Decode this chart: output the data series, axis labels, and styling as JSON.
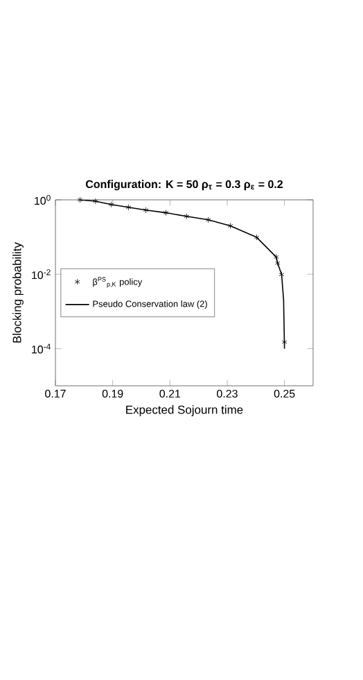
{
  "chart_data": {
    "type": "line",
    "title": "Configuration:  K = 50     ρ$_{τ}$ = 0.3   ρ$_{ε}$ = 0.2",
    "xlabel": "Expected Sojourn time",
    "ylabel": "Blocking probability",
    "log": "y",
    "legend": "left",
    "grid": false,
    "xlim": [
      0.17,
      0.26
    ],
    "xticks": [
      0.17,
      0.19,
      0.21,
      0.23,
      0.25
    ],
    "ylim": [
      1e-05,
      1
    ],
    "yticks": [
      {
        "value": 0.0001,
        "label": "10$^{-4}$"
      },
      {
        "value": 0.01,
        "label": "10$^{-2}$"
      },
      {
        "value": 1,
        "label": "10$^{0}$"
      }
    ],
    "series": [
      {
        "type": "scatter",
        "marker": "cross",
        "name": "β$^{PS}$$_{p,K}$ policy",
        "color": "#000000",
        "x": [
          0.1786,
          0.184,
          0.1895,
          0.1955,
          0.2016,
          0.2086,
          0.2158,
          0.2234,
          0.2311,
          0.2403,
          0.2471,
          0.2476,
          0.249,
          0.25
        ],
        "values": [
          1.0,
          0.92,
          0.75,
          0.63,
          0.53,
          0.45,
          0.36,
          0.29,
          0.2,
          0.098,
          0.029,
          0.02,
          0.0098,
          0.00015
        ]
      },
      {
        "line_style": "solid",
        "name": "Pseudo Conservation law (2)",
        "color": "#000000",
        "x": [
          0.1786,
          0.184,
          0.1895,
          0.1955,
          0.2016,
          0.2086,
          0.2158,
          0.2234,
          0.2311,
          0.2403,
          0.2471,
          0.2476,
          0.249,
          0.2497,
          0.25
        ],
        "values": [
          1.0,
          0.92,
          0.75,
          0.63,
          0.53,
          0.45,
          0.36,
          0.29,
          0.2,
          0.098,
          0.029,
          0.02,
          0.0098,
          0.002,
          0.0001
        ]
      }
    ]
  }
}
